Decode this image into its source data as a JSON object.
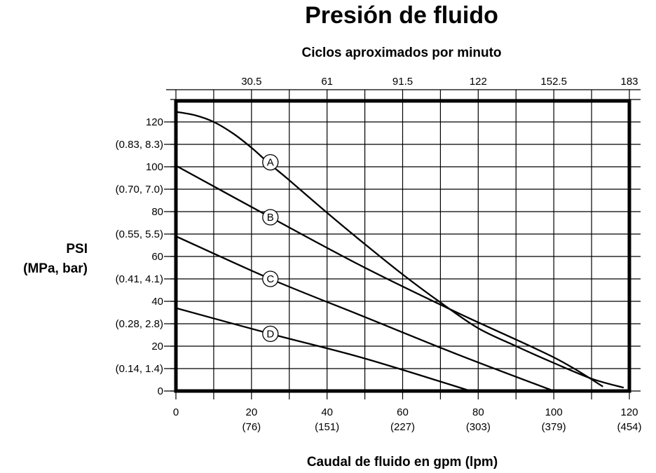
{
  "chart_data": {
    "type": "line",
    "title": "Presión de fluido",
    "top_axis_label": "Ciclos aproximados por minuto",
    "top_ticks": [
      "30.5",
      "61",
      "91.5",
      "122",
      "152.5",
      "183"
    ],
    "ylabel": [
      "PSI",
      "(MPa, bar)"
    ],
    "xlabel": "Caudal de fluido en gpm (lpm)",
    "xlim": [
      0,
      120
    ],
    "ylim": [
      0,
      130
    ],
    "grid": true,
    "x_ticks": [
      {
        "value": 0,
        "label": "0",
        "sub": ""
      },
      {
        "value": 20,
        "label": "20",
        "sub": "(76)"
      },
      {
        "value": 40,
        "label": "40",
        "sub": "(151)"
      },
      {
        "value": 60,
        "label": "60",
        "sub": "(227)"
      },
      {
        "value": 80,
        "label": "80",
        "sub": "(303)"
      },
      {
        "value": 100,
        "label": "100",
        "sub": "(379)"
      },
      {
        "value": 120,
        "label": "120",
        "sub": "(454)"
      }
    ],
    "y_ticks": [
      {
        "value": 0,
        "label": "0",
        "sub": "(0.14, 1.4)"
      },
      {
        "value": 20,
        "label": "20",
        "sub": "(0.28, 2.8)"
      },
      {
        "value": 40,
        "label": "40",
        "sub": "(0.41, 4.1)"
      },
      {
        "value": 60,
        "label": "60",
        "sub": "(0.55, 5.5)"
      },
      {
        "value": 80,
        "label": "80",
        "sub": "(0.70, 7.0)"
      },
      {
        "value": 100,
        "label": "100",
        "sub": "(0.83, 8.3)"
      },
      {
        "value": 120,
        "label": "120",
        "sub": ""
      }
    ],
    "series": [
      {
        "name": "A",
        "x": [
          0,
          5,
          10,
          15,
          20,
          25,
          30,
          40,
          50,
          60,
          70,
          80,
          90,
          100,
          110,
          118.5
        ],
        "y": [
          124.5,
          123,
          120,
          115,
          108.5,
          101,
          94,
          79.5,
          65.5,
          52,
          39.5,
          28,
          20,
          12.5,
          5.5,
          1.5
        ]
      },
      {
        "name": "B",
        "x": [
          0,
          25,
          50,
          75,
          100,
          113
        ],
        "y": [
          100.5,
          77.5,
          55,
          34.5,
          15,
          2
        ]
      },
      {
        "name": "C",
        "x": [
          0,
          25,
          50,
          75,
          100
        ],
        "y": [
          69,
          50,
          33,
          16,
          0
        ]
      },
      {
        "name": "D",
        "x": [
          0,
          25,
          50,
          78
        ],
        "y": [
          37,
          25.5,
          14.5,
          0
        ]
      }
    ],
    "curve_labels": [
      {
        "text": "A",
        "x": 25,
        "y": 102
      },
      {
        "text": "B",
        "x": 25,
        "y": 77.5
      },
      {
        "text": "C",
        "x": 25,
        "y": 50
      },
      {
        "text": "D",
        "x": 25,
        "y": 25.5
      }
    ]
  }
}
